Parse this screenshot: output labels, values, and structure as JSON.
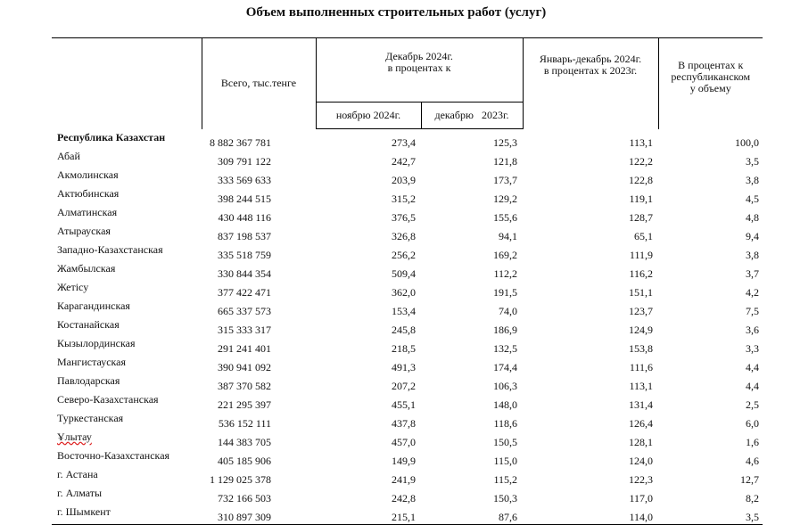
{
  "title": "Объем выполненных строительных работ (услуг)",
  "headers": {
    "total": "Всего, тыс.тенге",
    "dec_group": "Декабрь 2024г.\nв процентах к",
    "nov": "ноябрю 2024г.",
    "dec": "декабрю   2023г.",
    "janDec": "Январь-декабрь 2024г.\nв процентах к 2023г.",
    "share": "В процентах к\nреспубликанском\nу объему"
  },
  "rows": [
    {
      "name": "Республика Казахстан",
      "total": "8 882 367 781",
      "nov": "273,4",
      "dec": "125,3",
      "janDec": "113,1",
      "share": "100,0"
    },
    {
      "name": "Абай",
      "total": "309 791 122",
      "nov": "242,7",
      "dec": "121,8",
      "janDec": "122,2",
      "share": "3,5"
    },
    {
      "name": "Акмолинская",
      "total": "333 569 633",
      "nov": "203,9",
      "dec": "173,7",
      "janDec": "122,8",
      "share": "3,8"
    },
    {
      "name": "Актюбинская",
      "total": "398 244 515",
      "nov": "315,2",
      "dec": "129,2",
      "janDec": "119,1",
      "share": "4,5"
    },
    {
      "name": "Алматинская",
      "total": "430 448 116",
      "nov": "376,5",
      "dec": "155,6",
      "janDec": "128,7",
      "share": "4,8"
    },
    {
      "name": "Атырауская",
      "total": "837 198 537",
      "nov": "326,8",
      "dec": "94,1",
      "janDec": "65,1",
      "share": "9,4"
    },
    {
      "name": "Западно-Казахстанская",
      "total": "335 518 759",
      "nov": "256,2",
      "dec": "169,2",
      "janDec": "111,9",
      "share": "3,8"
    },
    {
      "name": "Жамбылская",
      "total": "330 844 354",
      "nov": "509,4",
      "dec": "112,2",
      "janDec": "116,2",
      "share": "3,7"
    },
    {
      "name": "Жетісу",
      "total": "377 422 471",
      "nov": "362,0",
      "dec": "191,5",
      "janDec": "151,1",
      "share": "4,2"
    },
    {
      "name": "Карагандинская",
      "total": "665 337 573",
      "nov": "153,4",
      "dec": "74,0",
      "janDec": "123,7",
      "share": "7,5"
    },
    {
      "name": "Костанайская",
      "total": "315 333 317",
      "nov": "245,8",
      "dec": "186,9",
      "janDec": "124,9",
      "share": "3,6"
    },
    {
      "name": "Кызылординская",
      "total": "291 241 401",
      "nov": "218,5",
      "dec": "132,5",
      "janDec": "153,8",
      "share": "3,3"
    },
    {
      "name": "Мангистауская",
      "total": "390 941 092",
      "nov": "491,3",
      "dec": "174,4",
      "janDec": "111,6",
      "share": "4,4"
    },
    {
      "name": "Павлодарская",
      "total": "387 370 582",
      "nov": "207,2",
      "dec": "106,3",
      "janDec": "113,1",
      "share": "4,4"
    },
    {
      "name": "Северо-Казахстанская",
      "total": "221 295 397",
      "nov": "455,1",
      "dec": "148,0",
      "janDec": "131,4",
      "share": "2,5"
    },
    {
      "name": "Туркестанская",
      "total": "536 152 111",
      "nov": "437,8",
      "dec": "118,6",
      "janDec": "126,4",
      "share": "6,0"
    },
    {
      "name": "Ұлытау",
      "total": "144 383 705",
      "nov": "457,0",
      "dec": "150,5",
      "janDec": "128,1",
      "share": "1,6"
    },
    {
      "name": "Восточно-Казахстанская",
      "total": "405 185 906",
      "nov": "149,9",
      "dec": "115,0",
      "janDec": "124,0",
      "share": "4,6"
    },
    {
      "name": "г. Астана",
      "total": "1 129 025 378",
      "nov": "241,9",
      "dec": "115,2",
      "janDec": "122,3",
      "share": "12,7"
    },
    {
      "name": "г. Алматы",
      "total": "732 166 503",
      "nov": "242,8",
      "dec": "150,3",
      "janDec": "117,0",
      "share": "8,2"
    },
    {
      "name": "г. Шымкент",
      "total": "310 897 309",
      "nov": "215,1",
      "dec": "87,6",
      "janDec": "114,0",
      "share": "3,5"
    }
  ]
}
